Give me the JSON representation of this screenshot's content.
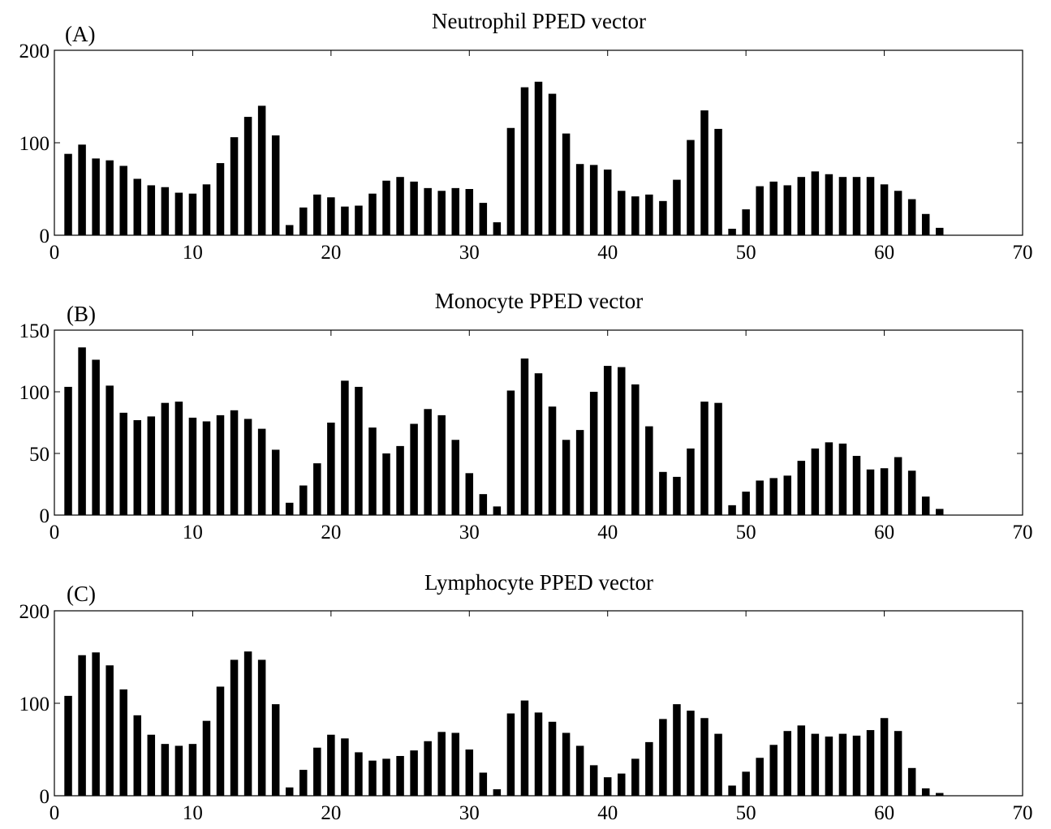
{
  "chart_data": [
    {
      "type": "bar",
      "panel_label": "(A)",
      "title": "Neutrophil PPED vector",
      "xlabel": "",
      "ylabel": "",
      "xlim": [
        0,
        70
      ],
      "ylim": [
        0,
        200
      ],
      "xticks": [
        0,
        10,
        20,
        30,
        40,
        50,
        60,
        70
      ],
      "yticks": [
        0,
        100,
        200
      ],
      "x": [
        1,
        2,
        3,
        4,
        5,
        6,
        7,
        8,
        9,
        10,
        11,
        12,
        13,
        14,
        15,
        16,
        17,
        18,
        19,
        20,
        21,
        22,
        23,
        24,
        25,
        26,
        27,
        28,
        29,
        30,
        31,
        32,
        33,
        34,
        35,
        36,
        37,
        38,
        39,
        40,
        41,
        42,
        43,
        44,
        45,
        46,
        47,
        48,
        49,
        50,
        51,
        52,
        53,
        54,
        55,
        56,
        57,
        58,
        59,
        60,
        61,
        62,
        63,
        64
      ],
      "values": [
        88,
        98,
        83,
        81,
        75,
        61,
        54,
        52,
        46,
        45,
        55,
        78,
        106,
        128,
        140,
        108,
        11,
        30,
        44,
        41,
        31,
        32,
        45,
        59,
        63,
        58,
        51,
        48,
        51,
        50,
        35,
        14,
        116,
        160,
        166,
        153,
        110,
        77,
        76,
        71,
        48,
        42,
        44,
        37,
        60,
        103,
        135,
        115,
        7,
        28,
        53,
        58,
        54,
        63,
        69,
        66,
        63,
        63,
        63,
        55,
        48,
        39,
        23,
        8
      ]
    },
    {
      "type": "bar",
      "panel_label": "(B)",
      "title": "Monocyte PPED vector",
      "xlabel": "",
      "ylabel": "",
      "xlim": [
        0,
        70
      ],
      "ylim": [
        0,
        150
      ],
      "xticks": [
        0,
        10,
        20,
        30,
        40,
        50,
        60,
        70
      ],
      "yticks": [
        0,
        50,
        100,
        150
      ],
      "x": [
        1,
        2,
        3,
        4,
        5,
        6,
        7,
        8,
        9,
        10,
        11,
        12,
        13,
        14,
        15,
        16,
        17,
        18,
        19,
        20,
        21,
        22,
        23,
        24,
        25,
        26,
        27,
        28,
        29,
        30,
        31,
        32,
        33,
        34,
        35,
        36,
        37,
        38,
        39,
        40,
        41,
        42,
        43,
        44,
        45,
        46,
        47,
        48,
        49,
        50,
        51,
        52,
        53,
        54,
        55,
        56,
        57,
        58,
        59,
        60,
        61,
        62,
        63,
        64
      ],
      "values": [
        104,
        136,
        126,
        105,
        83,
        77,
        80,
        91,
        92,
        79,
        76,
        81,
        85,
        78,
        70,
        53,
        10,
        24,
        42,
        75,
        109,
        104,
        71,
        50,
        56,
        74,
        86,
        81,
        61,
        34,
        17,
        7,
        101,
        127,
        115,
        88,
        61,
        69,
        100,
        121,
        120,
        106,
        72,
        35,
        31,
        54,
        92,
        91,
        8,
        19,
        28,
        30,
        32,
        44,
        54,
        59,
        58,
        48,
        37,
        38,
        47,
        36,
        15,
        5
      ]
    },
    {
      "type": "bar",
      "panel_label": "(C)",
      "title": "Lymphocyte PPED vector",
      "xlabel": "",
      "ylabel": "",
      "xlim": [
        0,
        70
      ],
      "ylim": [
        0,
        200
      ],
      "xticks": [
        0,
        10,
        20,
        30,
        40,
        50,
        60,
        70
      ],
      "yticks": [
        0,
        100,
        200
      ],
      "x": [
        1,
        2,
        3,
        4,
        5,
        6,
        7,
        8,
        9,
        10,
        11,
        12,
        13,
        14,
        15,
        16,
        17,
        18,
        19,
        20,
        21,
        22,
        23,
        24,
        25,
        26,
        27,
        28,
        29,
        30,
        31,
        32,
        33,
        34,
        35,
        36,
        37,
        38,
        39,
        40,
        41,
        42,
        43,
        44,
        45,
        46,
        47,
        48,
        49,
        50,
        51,
        52,
        53,
        54,
        55,
        56,
        57,
        58,
        59,
        60,
        61,
        62,
        63,
        64
      ],
      "values": [
        108,
        152,
        155,
        141,
        115,
        87,
        66,
        56,
        54,
        56,
        81,
        118,
        147,
        156,
        147,
        99,
        9,
        28,
        52,
        66,
        62,
        47,
        38,
        40,
        43,
        49,
        59,
        69,
        68,
        50,
        25,
        7,
        89,
        103,
        90,
        80,
        68,
        54,
        33,
        20,
        24,
        40,
        58,
        83,
        99,
        92,
        84,
        67,
        11,
        26,
        41,
        55,
        70,
        76,
        67,
        64,
        67,
        65,
        71,
        84,
        70,
        30,
        8,
        3
      ]
    }
  ]
}
